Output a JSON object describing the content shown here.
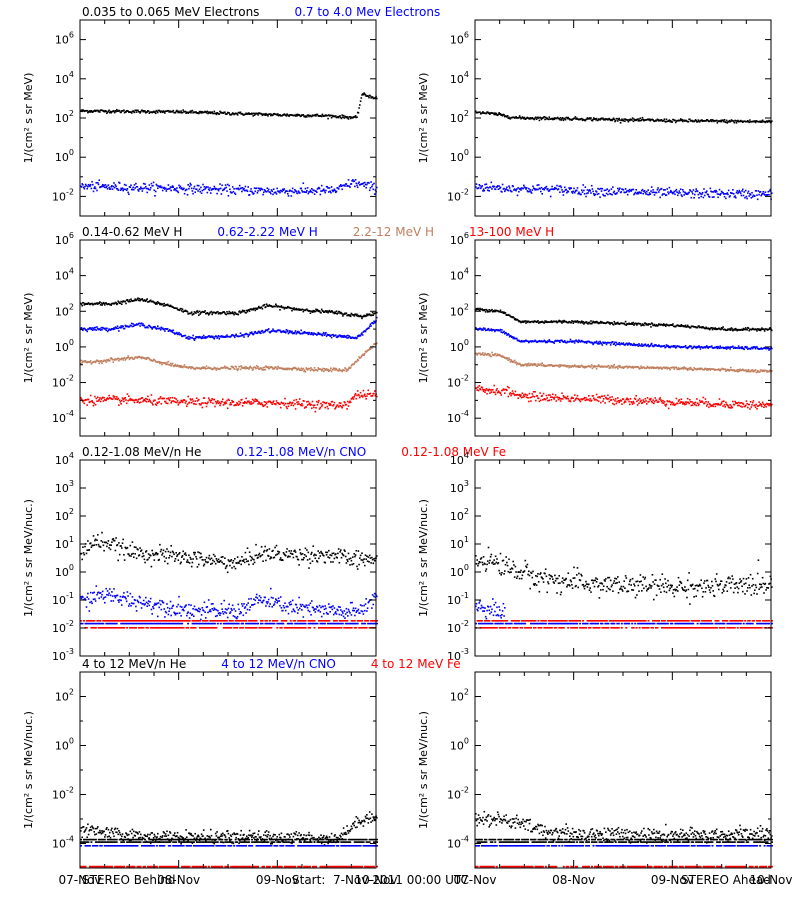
{
  "footer": {
    "left": "STEREO Behind",
    "center": "Start:  7-Nov-2011 00:00 UTC",
    "right": "STEREO Ahead"
  },
  "colors": {
    "black": "#000000",
    "blue": "#0000ff",
    "tan": "#c08060",
    "red": "#ff0000"
  },
  "chart_data": [
    {
      "type": "scatter",
      "row": 1,
      "column": "left",
      "ylabel": "1/(cm² s sr MeV)",
      "log_y": true,
      "ylim_exp": [
        -3,
        7
      ],
      "y_ticks": [
        -2,
        0,
        2,
        4,
        6
      ],
      "x_ticks": [
        "07-Nov",
        "08-Nov",
        "09-Nov",
        "10-Nov"
      ],
      "show_x_labels": false,
      "legend": [
        {
          "text": "0.035 to 0.065 MeV Electrons",
          "color": "black"
        },
        {
          "text": "0.7 to 4.0 Mev Electrons",
          "color": "blue"
        }
      ],
      "series": [
        {
          "color": "black",
          "x_days": [
            0,
            1,
            2,
            2.5,
            2.8,
            2.85,
            3
          ],
          "log10_y": [
            2.35,
            2.3,
            2.15,
            2.1,
            2.0,
            3.2,
            3.0
          ],
          "noise": 0.04
        },
        {
          "color": "blue",
          "x_days": [
            0,
            1,
            2,
            2.6,
            2.75,
            3
          ],
          "log10_y": [
            -1.5,
            -1.6,
            -1.75,
            -1.7,
            -1.3,
            -1.6
          ],
          "noise": 0.12
        }
      ]
    },
    {
      "type": "scatter",
      "row": 1,
      "column": "right",
      "ylabel": "1/(cm² s sr MeV)",
      "log_y": true,
      "ylim_exp": [
        -3,
        7
      ],
      "y_ticks": [
        -2,
        0,
        2,
        4,
        6
      ],
      "x_ticks": [
        "07-Nov",
        "08-Nov",
        "09-Nov",
        "10-Nov"
      ],
      "show_x_labels": false,
      "legend": [],
      "series": [
        {
          "color": "black",
          "x_days": [
            0,
            0.25,
            0.4,
            1,
            2,
            3
          ],
          "log10_y": [
            2.3,
            2.15,
            2.0,
            1.95,
            1.85,
            1.8
          ],
          "noise": 0.04
        },
        {
          "color": "blue",
          "x_days": [
            0,
            0.3,
            1,
            2,
            3
          ],
          "log10_y": [
            -1.5,
            -1.6,
            -1.7,
            -1.85,
            -1.9
          ],
          "noise": 0.12
        }
      ]
    },
    {
      "type": "scatter",
      "row": 2,
      "column": "left",
      "ylabel": "1/(cm² s sr MeV)",
      "log_y": true,
      "ylim_exp": [
        -5,
        6
      ],
      "y_ticks": [
        -4,
        -2,
        0,
        2,
        4,
        6
      ],
      "x_ticks": [
        "07-Nov",
        "08-Nov",
        "09-Nov",
        "10-Nov"
      ],
      "show_x_labels": false,
      "legend": [
        {
          "text": "0.14-0.62 MeV H",
          "color": "black"
        },
        {
          "text": "0.62-2.22 MeV H",
          "color": "blue"
        },
        {
          "text": "2.2-12 MeV H",
          "color": "tan"
        },
        {
          "text": "13-100 MeV H",
          "color": "red"
        }
      ],
      "series": [
        {
          "color": "black",
          "x_days": [
            0,
            0.3,
            0.6,
            0.9,
            1.1,
            1.6,
            1.9,
            2.2,
            2.6,
            2.85,
            3
          ],
          "log10_y": [
            2.4,
            2.4,
            2.65,
            2.3,
            1.9,
            1.9,
            2.3,
            2.1,
            1.9,
            1.7,
            1.9
          ],
          "noise": 0.05
        },
        {
          "color": "blue",
          "x_days": [
            0,
            0.3,
            0.6,
            0.9,
            1.1,
            1.6,
            1.9,
            2.2,
            2.6,
            2.8,
            3
          ],
          "log10_y": [
            1.0,
            1.0,
            1.25,
            0.9,
            0.5,
            0.6,
            0.9,
            0.8,
            0.6,
            0.5,
            1.5
          ],
          "noise": 0.05
        },
        {
          "color": "tan",
          "x_days": [
            0,
            0.6,
            0.9,
            1.1,
            1.6,
            2.0,
            2.5,
            2.7,
            2.85,
            3
          ],
          "log10_y": [
            -0.9,
            -0.6,
            -1.0,
            -1.2,
            -1.2,
            -1.2,
            -1.3,
            -1.3,
            -0.5,
            0.2
          ],
          "noise": 0.05
        },
        {
          "color": "red",
          "x_days": [
            0,
            0.5,
            1,
            1.5,
            2,
            2.6,
            2.7,
            2.8,
            3
          ],
          "log10_y": [
            -3.0,
            -3.0,
            -3.1,
            -3.15,
            -3.15,
            -3.3,
            -3.2,
            -2.7,
            -2.7
          ],
          "noise": 0.12
        }
      ]
    },
    {
      "type": "scatter",
      "row": 2,
      "column": "right",
      "ylabel": "1/(cm² s sr MeV)",
      "log_y": true,
      "ylim_exp": [
        -5,
        6
      ],
      "y_ticks": [
        -4,
        -2,
        0,
        2,
        4,
        6
      ],
      "x_ticks": [
        "07-Nov",
        "08-Nov",
        "09-Nov",
        "10-Nov"
      ],
      "show_x_labels": false,
      "legend": [],
      "series": [
        {
          "color": "black",
          "x_days": [
            0,
            0.25,
            0.45,
            1,
            2,
            2.6,
            3
          ],
          "log10_y": [
            2.1,
            2.0,
            1.4,
            1.4,
            1.2,
            0.95,
            1.0
          ],
          "noise": 0.04
        },
        {
          "color": "blue",
          "x_days": [
            0,
            0.25,
            0.45,
            1,
            2,
            3
          ],
          "log10_y": [
            1.0,
            0.9,
            0.3,
            0.3,
            0.0,
            -0.1
          ],
          "noise": 0.04
        },
        {
          "color": "tan",
          "x_days": [
            0,
            0.25,
            0.45,
            1,
            2,
            3
          ],
          "log10_y": [
            -0.4,
            -0.5,
            -1.0,
            -1.1,
            -1.2,
            -1.4
          ],
          "noise": 0.04
        },
        {
          "color": "red",
          "x_days": [
            0,
            0.3,
            0.5,
            1,
            2,
            3
          ],
          "log10_y": [
            -2.4,
            -2.5,
            -2.8,
            -2.9,
            -3.1,
            -3.3
          ],
          "noise": 0.12
        }
      ]
    },
    {
      "type": "scatter",
      "row": 3,
      "column": "left",
      "ylabel": "1/(cm² s sr MeV/nuc.)",
      "log_y": true,
      "ylim_exp": [
        -3,
        4
      ],
      "y_ticks": [
        -3,
        -2,
        -1,
        0,
        1,
        2,
        3,
        4
      ],
      "x_ticks": [
        "07-Nov",
        "08-Nov",
        "09-Nov",
        "10-Nov"
      ],
      "show_x_labels": false,
      "legend": [
        {
          "text": "0.12-1.08 MeV/n He",
          "color": "black"
        },
        {
          "text": "0.12-1.08 MeV/n CNO",
          "color": "blue"
        },
        {
          "text": "0.12-1.08 MeV Fe",
          "color": "red"
        }
      ],
      "series": [
        {
          "color": "black",
          "x_days": [
            0,
            0.1,
            0.2,
            0.5,
            0.8,
            1.2,
            1.6,
            1.8,
            2.2,
            2.5,
            2.8,
            3
          ],
          "log10_y": [
            0.6,
            1.0,
            1.1,
            0.7,
            0.6,
            0.45,
            0.3,
            0.65,
            0.6,
            0.6,
            0.4,
            0.5
          ],
          "noise": 0.15
        },
        {
          "color": "blue",
          "x_days": [
            0,
            0.2,
            0.5,
            0.8,
            1.2,
            1.6,
            1.8,
            2.2,
            2.5,
            2.8,
            3
          ],
          "log10_y": [
            -1.1,
            -0.8,
            -1.0,
            -1.2,
            -1.4,
            -1.4,
            -1.0,
            -1.3,
            -1.4,
            -1.45,
            -0.9
          ],
          "noise": 0.15
        },
        {
          "color": "blue",
          "x_days": [
            0,
            3
          ],
          "log10_y": [
            -1.85,
            -1.85
          ],
          "noise": 0.0
        },
        {
          "color": "red",
          "x_days": [
            0,
            3
          ],
          "log10_y": [
            -1.75,
            -1.75
          ],
          "noise": 0.0
        },
        {
          "color": "red",
          "x_days": [
            0,
            3
          ],
          "log10_y": [
            -2.0,
            -2.0
          ],
          "noise": 0.0
        }
      ]
    },
    {
      "type": "scatter",
      "row": 3,
      "column": "right",
      "ylabel": "1/(cm² s sr MeV/nuc.)",
      "log_y": true,
      "ylim_exp": [
        -3,
        4
      ],
      "y_ticks": [
        -3,
        -2,
        -1,
        0,
        1,
        2,
        3,
        4
      ],
      "x_ticks": [
        "07-Nov",
        "08-Nov",
        "09-Nov",
        "10-Nov"
      ],
      "show_x_labels": false,
      "legend": [],
      "series": [
        {
          "color": "black",
          "x_days": [
            0,
            0.1,
            0.3,
            0.6,
            1,
            1.5,
            2,
            2.5,
            3
          ],
          "log10_y": [
            0.4,
            0.45,
            0.2,
            -0.2,
            -0.4,
            -0.5,
            -0.55,
            -0.55,
            -0.4
          ],
          "noise": 0.2
        },
        {
          "color": "blue",
          "x_days": [
            0,
            0.15,
            0.3
          ],
          "log10_y": [
            -1.2,
            -1.3,
            -1.5
          ],
          "noise": 0.15
        },
        {
          "color": "blue",
          "x_days": [
            0,
            3
          ],
          "log10_y": [
            -1.85,
            -1.85
          ],
          "noise": 0.0
        },
        {
          "color": "red",
          "x_days": [
            0,
            3
          ],
          "log10_y": [
            -1.75,
            -1.75
          ],
          "noise": 0.0
        },
        {
          "color": "red",
          "x_days": [
            0,
            3
          ],
          "log10_y": [
            -2.0,
            -2.0
          ],
          "noise": 0.0
        }
      ]
    },
    {
      "type": "scatter",
      "row": 4,
      "column": "left",
      "ylabel": "1/(cm² s sr MeV/nuc.)",
      "log_y": true,
      "ylim_exp": [
        -5,
        3
      ],
      "y_ticks": [
        -4,
        -2,
        0,
        2
      ],
      "x_ticks": [
        "07-Nov",
        "08-Nov",
        "09-Nov",
        "10-Nov"
      ],
      "show_x_labels": true,
      "legend": [
        {
          "text": "4 to 12 MeV/n He",
          "color": "black"
        },
        {
          "text": "4 to 12 MeV/n CNO",
          "color": "blue"
        },
        {
          "text": "4 to 12 MeV Fe",
          "color": "red"
        }
      ],
      "series": [
        {
          "color": "black",
          "x_days": [
            0,
            0.1,
            0.3,
            0.6,
            1,
            1.5,
            2,
            2.6,
            2.7,
            2.85,
            3
          ],
          "log10_y": [
            -3.5,
            -3.5,
            -3.6,
            -3.7,
            -3.75,
            -3.75,
            -3.75,
            -3.8,
            -3.5,
            -3.0,
            -2.9
          ],
          "noise": 0.12
        },
        {
          "color": "black",
          "x_days": [
            0,
            3
          ],
          "log10_y": [
            -3.85,
            -3.85
          ],
          "noise": 0.0
        },
        {
          "color": "black",
          "x_days": [
            0,
            3
          ],
          "log10_y": [
            -3.95,
            -3.95
          ],
          "noise": 0.0
        },
        {
          "color": "blue",
          "x_days": [
            0,
            3
          ],
          "log10_y": [
            -4.1,
            -4.1
          ],
          "noise": 0.0
        },
        {
          "color": "red",
          "x_days": [
            0,
            3
          ],
          "log10_y": [
            -4.95,
            -4.95
          ],
          "noise": 0.0
        }
      ]
    },
    {
      "type": "scatter",
      "row": 4,
      "column": "right",
      "ylabel": "1/(cm² s sr MeV/nuc.)",
      "log_y": true,
      "ylim_exp": [
        -5,
        3
      ],
      "y_ticks": [
        -4,
        -2,
        0,
        2
      ],
      "x_ticks": [
        "07-Nov",
        "08-Nov",
        "09-Nov",
        "10-Nov"
      ],
      "show_x_labels": true,
      "legend": [],
      "series": [
        {
          "color": "black",
          "x_days": [
            0,
            0.2,
            0.45,
            0.7,
            1,
            2,
            3
          ],
          "log10_y": [
            -3.0,
            -3.0,
            -3.2,
            -3.5,
            -3.6,
            -3.7,
            -3.6
          ],
          "noise": 0.15
        },
        {
          "color": "black",
          "x_days": [
            0,
            3
          ],
          "log10_y": [
            -3.85,
            -3.85
          ],
          "noise": 0.0
        },
        {
          "color": "black",
          "x_days": [
            0,
            3
          ],
          "log10_y": [
            -3.95,
            -3.95
          ],
          "noise": 0.0
        },
        {
          "color": "blue",
          "x_days": [
            0,
            3
          ],
          "log10_y": [
            -4.1,
            -4.1
          ],
          "noise": 0.0
        },
        {
          "color": "red",
          "x_days": [
            0,
            3
          ],
          "log10_y": [
            -4.95,
            -4.95
          ],
          "noise": 0.0
        }
      ]
    }
  ]
}
